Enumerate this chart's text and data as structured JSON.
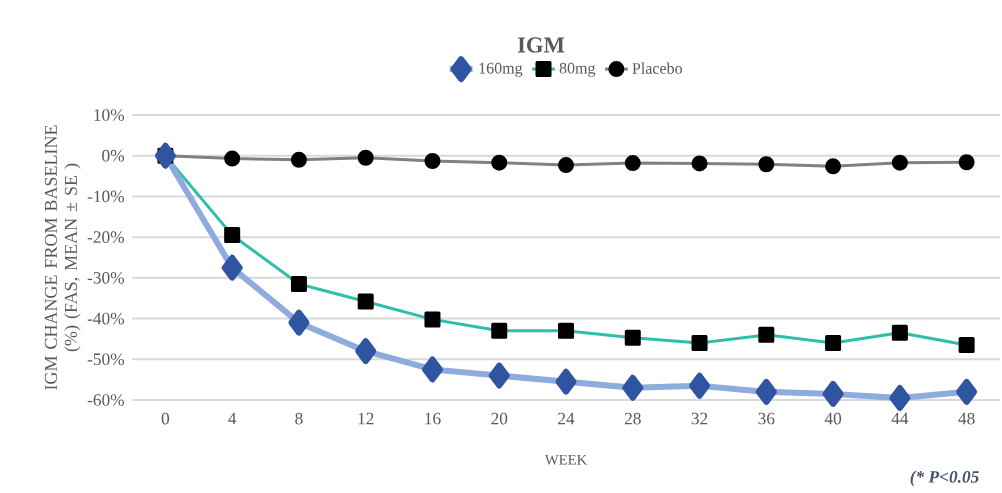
{
  "chart_data": {
    "type": "line",
    "title": "IGM",
    "xlabel": "WEEK",
    "ylabel": "IGM CHANGE FROM BASELINE (%) (FAS, MEAN ± SE )",
    "categories": [
      "0",
      "4",
      "8",
      "12",
      "16",
      "20",
      "24",
      "28",
      "32",
      "36",
      "40",
      "44",
      "48"
    ],
    "series": [
      {
        "name": "160mg",
        "color": "#8faadc",
        "marker": "diamond",
        "colors": [
          "#2f54a0",
          "#2f54a0",
          "#2f54a0",
          "#2f54a0",
          "#2f54a0",
          "#2f54a0",
          "#2f54a0",
          "#2f54a0",
          "#2f54a0",
          "#2f54a0",
          "#2f54a0",
          "#2f54a0",
          "#2f54a0"
        ],
        "values": [
          0,
          -27.5,
          -41,
          -48,
          -52.5,
          -54,
          -55.5,
          -57,
          -56.5,
          -58,
          -58.5,
          -59.5,
          -58
        ]
      },
      {
        "name": "80mg",
        "color": "#2ebfab",
        "marker": "square",
        "colors": [
          "#000000",
          "#000000",
          "#000000",
          "#000000",
          "#000000",
          "#000000",
          "#000000",
          "#000000",
          "#000000",
          "#000000",
          "#000000",
          "#000000",
          "#000000"
        ],
        "values": [
          0,
          -19.5,
          -31.5,
          -35.8,
          -40.2,
          -43,
          -43,
          -44.7,
          -46,
          -44,
          -46,
          -43.5,
          -46.5
        ]
      },
      {
        "name": "Placebo",
        "color": "#808080",
        "marker": "circle",
        "colors": [
          "#000000",
          "#000000",
          "#000000",
          "#000000",
          "#000000",
          "#000000",
          "#000000",
          "#000000",
          "#000000",
          "#000000",
          "#000000",
          "#000000",
          "#000000"
        ],
        "values": [
          0,
          -0.7,
          -1,
          -0.5,
          -1.3,
          -1.7,
          -2.3,
          -1.8,
          -1.9,
          -2.1,
          -2.6,
          -1.7,
          -1.6
        ]
      }
    ],
    "ylim": [
      -60,
      10
    ],
    "yticks": [
      {
        "value": -60,
        "label": "-60%"
      },
      {
        "value": -50,
        "label": "-50%"
      },
      {
        "value": -40,
        "label": "-40%"
      },
      {
        "value": -30,
        "label": "-30%"
      },
      {
        "value": -20,
        "label": "-20%"
      },
      {
        "value": -10,
        "label": "-10%"
      },
      {
        "value": 0,
        "label": "0%"
      },
      {
        "value": 10,
        "label": "10%"
      }
    ],
    "grid": "y",
    "legend": "top",
    "line_style": "solid",
    "annotations": [
      "(* P<0.05"
    ]
  }
}
